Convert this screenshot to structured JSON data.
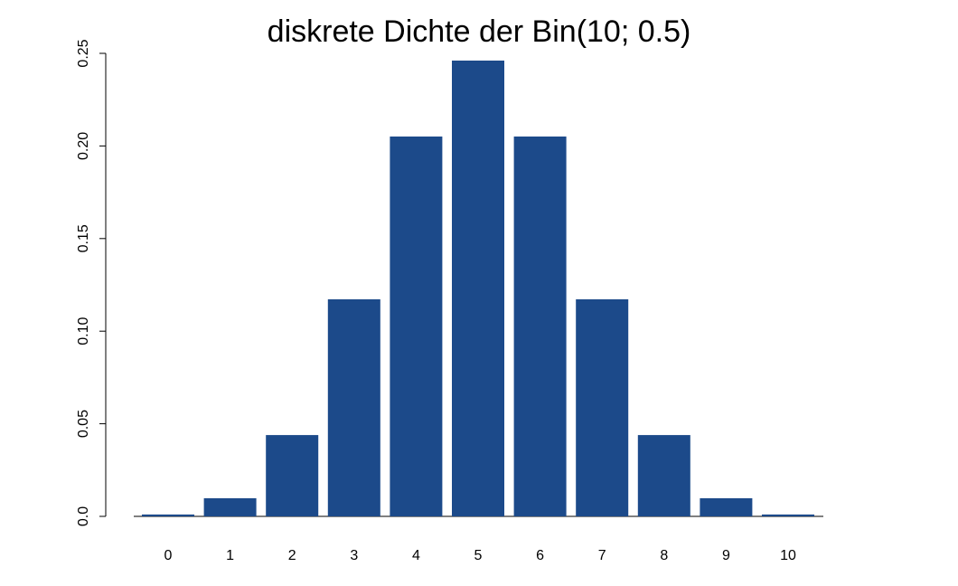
{
  "chart_data": {
    "type": "bar",
    "title": "diskrete Dichte der Bin(10; 0.5)",
    "categories": [
      "0",
      "1",
      "2",
      "3",
      "4",
      "5",
      "6",
      "7",
      "8",
      "9",
      "10"
    ],
    "values": [
      0.001,
      0.0098,
      0.0439,
      0.1172,
      0.2051,
      0.2461,
      0.2051,
      0.1172,
      0.0439,
      0.0098,
      0.001
    ],
    "ylim": [
      0,
      0.25
    ],
    "yticks": [
      0.0,
      0.05,
      0.1,
      0.15,
      0.2,
      0.25
    ],
    "ytick_labels": [
      "0.0",
      "0.05",
      "0.10",
      "0.15",
      "0.20",
      "0.25"
    ],
    "xlabel": "",
    "ylabel": "",
    "grid": false,
    "legend": "none",
    "colors": {
      "bar": "#1c4a8a",
      "text": "#000000",
      "axis": "#000000",
      "background": "#ffffff"
    }
  }
}
